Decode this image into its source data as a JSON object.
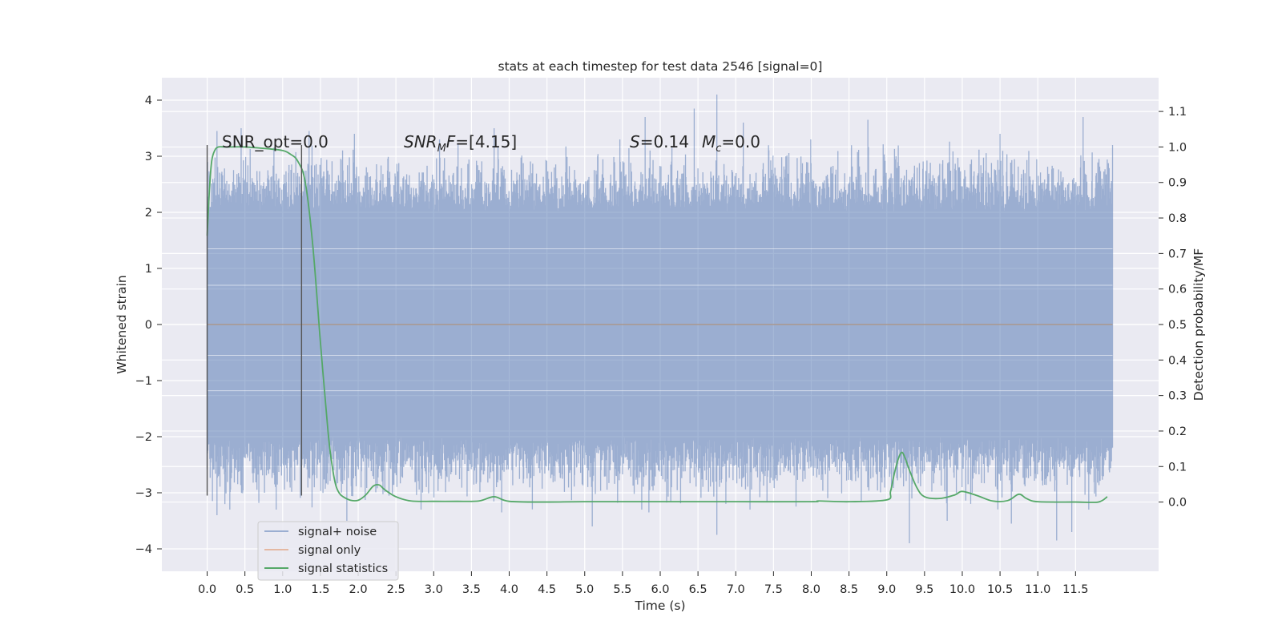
{
  "chart_data": {
    "type": "line",
    "title": "stats at each timestep for test data 2546 [signal=0]",
    "xlabel": "Time (s)",
    "ylabel": "Whitened strain",
    "ylabel_right": "Detection probability/MF",
    "xlim": [
      -0.6,
      12.6
    ],
    "ylim": [
      -4.4,
      4.4
    ],
    "ylim_right": [
      -0.195,
      1.195
    ],
    "xticks": [
      "0.0",
      "0.5",
      "1.0",
      "1.5",
      "2.0",
      "2.5",
      "3.0",
      "3.5",
      "4.0",
      "4.5",
      "5.0",
      "5.5",
      "6.0",
      "6.5",
      "7.0",
      "7.5",
      "8.0",
      "8.5",
      "9.0",
      "9.5",
      "10.0",
      "10.5",
      "11.0",
      "11.5"
    ],
    "xtick_values": [
      0,
      0.5,
      1,
      1.5,
      2,
      2.5,
      3,
      3.5,
      4,
      4.5,
      5,
      5.5,
      6,
      6.5,
      7,
      7.5,
      8,
      8.5,
      9,
      9.5,
      10,
      10.5,
      11,
      11.5
    ],
    "yticks": [
      "4",
      "3",
      "2",
      "1",
      "0",
      "−1",
      "−2",
      "−3",
      "−4"
    ],
    "ytick_values": [
      4,
      3,
      2,
      1,
      0,
      -1,
      -2,
      -3,
      -4
    ],
    "yticks_right": [
      "1.1",
      "1.0",
      "0.9",
      "0.8",
      "0.7",
      "0.6",
      "0.5",
      "0.4",
      "0.3",
      "0.2",
      "0.1",
      "0.0"
    ],
    "ytick_values_right": [
      1.1,
      1.0,
      0.9,
      0.8,
      0.7,
      0.6,
      0.5,
      0.4,
      0.3,
      0.2,
      0.1,
      0.0
    ],
    "grid": true,
    "legend_placement": "lower-left",
    "series": [
      {
        "name": "signal+ noise",
        "axis": "left",
        "color": "#4c72b0",
        "opacity": 0.5,
        "x_range": [
          0.0,
          11.99
        ],
        "envelope_typical": [
          -2.0,
          2.0
        ],
        "extreme_peaks": [
          {
            "x": 0.13,
            "y": 3.45
          },
          {
            "x": 0.45,
            "y": 3.5
          },
          {
            "x": 1.35,
            "y": 3.45
          },
          {
            "x": 1.95,
            "y": 3.4
          },
          {
            "x": 3.8,
            "y": 3.5
          },
          {
            "x": 5.8,
            "y": 3.7
          },
          {
            "x": 6.45,
            "y": 3.85
          },
          {
            "x": 6.75,
            "y": 4.1
          },
          {
            "x": 7.1,
            "y": 3.6
          },
          {
            "x": 8.75,
            "y": 3.65
          },
          {
            "x": 10.5,
            "y": 3.4
          },
          {
            "x": 11.6,
            "y": 3.7
          },
          {
            "x": 11.99,
            "y": 3.2
          }
        ],
        "extreme_troughs": [
          {
            "x": 0.13,
            "y": -3.4
          },
          {
            "x": 0.3,
            "y": -3.3
          },
          {
            "x": 1.85,
            "y": -3.5
          },
          {
            "x": 3.9,
            "y": -3.35
          },
          {
            "x": 5.1,
            "y": -3.6
          },
          {
            "x": 5.85,
            "y": -3.35
          },
          {
            "x": 6.75,
            "y": -3.75
          },
          {
            "x": 9.3,
            "y": -3.9
          },
          {
            "x": 9.8,
            "y": -3.5
          },
          {
            "x": 10.65,
            "y": -3.55
          },
          {
            "x": 11.25,
            "y": -3.85
          },
          {
            "x": 11.45,
            "y": -3.7
          }
        ]
      },
      {
        "name": "signal only",
        "axis": "left",
        "color": "#dd8452",
        "x": [
          0.0,
          11.99
        ],
        "y": [
          0.0,
          0.0
        ]
      },
      {
        "name": "signal statistics",
        "axis": "right",
        "color": "#55a868",
        "x": [
          0.0,
          0.03,
          0.06,
          0.1,
          0.15,
          0.25,
          0.5,
          0.8,
          1.0,
          1.1,
          1.2,
          1.3,
          1.4,
          1.5,
          1.6,
          1.65,
          1.7,
          1.75,
          1.8,
          1.9,
          2.0,
          2.1,
          2.2,
          2.28,
          2.35,
          2.5,
          2.7,
          3.0,
          3.3,
          3.6,
          3.8,
          4.0,
          4.5,
          5.0,
          6.0,
          7.0,
          8.0,
          8.1,
          8.5,
          9.0,
          9.05,
          9.1,
          9.15,
          9.2,
          9.25,
          9.3,
          9.4,
          9.5,
          9.7,
          9.9,
          10.0,
          10.2,
          10.4,
          10.6,
          10.75,
          10.85,
          11.0,
          11.5,
          11.8,
          11.92
        ],
        "y": [
          0.75,
          0.88,
          0.96,
          0.99,
          1.0,
          1.0,
          1.0,
          0.995,
          0.99,
          0.98,
          0.96,
          0.9,
          0.72,
          0.45,
          0.2,
          0.11,
          0.05,
          0.025,
          0.015,
          0.005,
          0.005,
          0.02,
          0.045,
          0.048,
          0.035,
          0.015,
          0.003,
          0.002,
          0.002,
          0.003,
          0.015,
          0.002,
          0.0,
          0.001,
          0.001,
          0.001,
          0.001,
          0.003,
          0.001,
          0.006,
          0.03,
          0.08,
          0.12,
          0.14,
          0.12,
          0.09,
          0.04,
          0.015,
          0.01,
          0.02,
          0.03,
          0.018,
          0.003,
          0.004,
          0.022,
          0.01,
          0.001,
          0.0,
          0.0,
          0.015
        ]
      }
    ],
    "vertical_lines": [
      {
        "x": 0.0,
        "y_range": [
          -3.05,
          3.2
        ],
        "color": "#555555"
      },
      {
        "x": 1.25,
        "y_range": [
          -3.05,
          3.2
        ],
        "color": "#555555"
      }
    ],
    "annotations": [
      {
        "text": "SNR_opt=0.0",
        "x": 0.2,
        "y": 3.25
      },
      {
        "text": "SNR_MF=[4.15]",
        "x": 2.6,
        "y": 3.25
      },
      {
        "text": "S=0.14   M_c=0.0",
        "x": 5.6,
        "y": 3.25
      }
    ]
  },
  "annotations_text": {
    "snr_opt": "SNR_opt=0.0",
    "snr_mf_a": "SNR",
    "snr_mf_sub": "M",
    "snr_mf_b": "F=[4.15]",
    "s_label": "S",
    "s_value": "=0.14",
    "mc_label": "M",
    "mc_sub": "c",
    "mc_value": "=0.0"
  },
  "legend": {
    "items": [
      "signal+ noise",
      "signal only",
      "signal statistics"
    ]
  }
}
